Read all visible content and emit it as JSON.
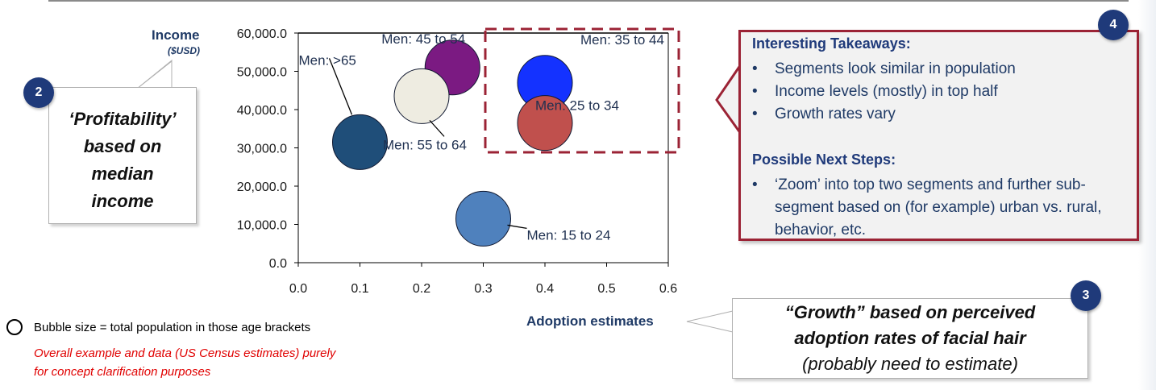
{
  "chart_data": {
    "type": "scatter",
    "xlabel": "Adoption estimates",
    "ylabel": "Income",
    "ylabel_unit": "($USD)",
    "xlim": [
      0.0,
      0.6
    ],
    "ylim": [
      0.0,
      60000.0
    ],
    "x_ticks": [
      "0.0",
      "0.1",
      "0.2",
      "0.3",
      "0.4",
      "0.5",
      "0.6"
    ],
    "y_ticks": [
      "0.0",
      "10,000.0",
      "20,000.0",
      "30,000.0",
      "40,000.0",
      "50,000.0",
      "60,000.0"
    ],
    "x_tick_values": [
      0.0,
      0.1,
      0.2,
      0.3,
      0.4,
      0.5,
      0.6
    ],
    "y_tick_values": [
      0,
      10000,
      20000,
      30000,
      40000,
      50000,
      60000
    ],
    "size_note": "Bubble size = total population in those age brackets",
    "points": [
      {
        "label": "Men: >65",
        "x": 0.1,
        "y": 31500,
        "color": "#1f4e79"
      },
      {
        "label": "Men: 45 to 54",
        "x": 0.25,
        "y": 51000,
        "color": "#7b1a82"
      },
      {
        "label": "Men: 55 to 64",
        "x": 0.2,
        "y": 43500,
        "color": "#eeece1"
      },
      {
        "label": "Men: 35 to 44",
        "x": 0.4,
        "y": 47000,
        "color": "#1432ff"
      },
      {
        "label": "Men: 25 to 34",
        "x": 0.4,
        "y": 36500,
        "color": "#c0504d"
      },
      {
        "label": "Men: 15 to 24",
        "x": 0.3,
        "y": 11500,
        "color": "#4f81bd"
      }
    ]
  },
  "callout_profitability": {
    "badge": "2",
    "lines": [
      "‘Profitability’",
      "based on",
      "median",
      "income"
    ]
  },
  "callout_growth": {
    "badge": "3",
    "line1": "“Growth” based on perceived",
    "line2": "adoption  rates of facial hair",
    "line3": "(probably  need to estimate)"
  },
  "callout_takeaways": {
    "badge": "4",
    "heading1": "Interesting Takeaways:",
    "takeaways": [
      "Segments look similar in population",
      "Income levels (mostly) in top half",
      "Growth rates vary"
    ],
    "heading2": "Possible Next Steps:",
    "next_steps": [
      "‘Zoom’ into top two segments and further sub-segment based on (for example) urban vs. rural, behavior, etc."
    ]
  },
  "bullet_char": "•",
  "legend": {
    "text": "Bubble size = total  population  in those age brackets"
  },
  "note": {
    "line1": "Overall example and data (US Census estimates) purely",
    "line2": "for concept clarification  purposes"
  },
  "colors": {
    "navy": "#1f3a7a",
    "accent_red": "#9b2335",
    "note_red": "#e00000"
  }
}
